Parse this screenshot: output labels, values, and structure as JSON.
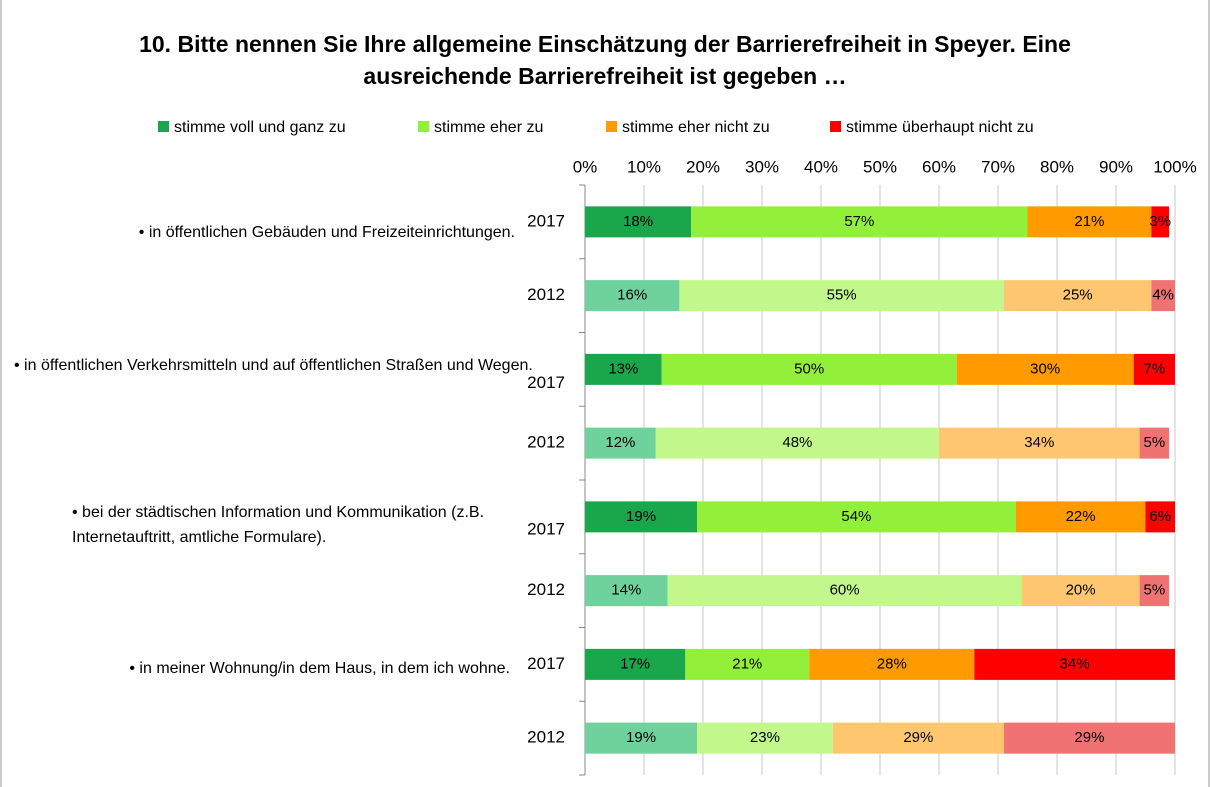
{
  "chart_data": {
    "type": "stacked_barh",
    "title": "10.  Bitte nennen Sie Ihre allgemeine Einschätzung der Barrierefreiheit in Speyer.  Eine ausreichende Barrierefreiheit ist gegeben …",
    "groups": [
      "• in öffentlichen Gebäuden und Freizeiteinrichtungen.",
      "• in öffentlichen Verkehrsmitteln und auf öffentlichen Straßen und Wegen.",
      "• bei der städtischen Information und Kommunikation (z.B. Internetauftritt, amtliche Formulare).",
      "• in meiner Wohnung/in dem Haus, in dem ich wohne."
    ],
    "categories": [
      "2017",
      "2012",
      "2017",
      "2012",
      "2017",
      "2012",
      "2017",
      "2012"
    ],
    "series": [
      {
        "name": "stimme voll und ganz zu",
        "color": "#1aa64a",
        "light_color": "#6fd29c",
        "values": [
          18,
          16,
          13,
          12,
          19,
          14,
          17,
          19
        ],
        "value_labels": [
          "18%",
          "16%",
          "13%",
          "12%",
          "19%",
          "14%",
          "17%",
          "19%"
        ]
      },
      {
        "name": "stimme eher zu",
        "color": "#93f03a",
        "light_color": "#c2f78c",
        "values": [
          57,
          55,
          50,
          48,
          54,
          60,
          21,
          23
        ],
        "value_labels": [
          "57%",
          "55%",
          "50%",
          "48%",
          "54%",
          "60%",
          "21%",
          "23%"
        ]
      },
      {
        "name": "stimme eher nicht zu",
        "color": "#ff9a00",
        "light_color": "#ffc670",
        "values": [
          21,
          25,
          30,
          34,
          22,
          20,
          28,
          29
        ],
        "value_labels": [
          "21%",
          "25%",
          "30%",
          "34%",
          "22%",
          "20%",
          "28%",
          "29%"
        ]
      },
      {
        "name": "stimme überhaupt nicht zu",
        "color": "#ff0000",
        "light_color": "#f07272",
        "values": [
          3,
          4,
          7,
          5,
          6,
          5,
          34,
          29
        ],
        "value_labels": [
          "3%",
          "4%",
          "7%",
          "5%",
          "6%",
          "5%",
          "34%",
          "29%"
        ]
      }
    ],
    "xlim": [
      0,
      100
    ],
    "xticks": [
      {
        "value": 0,
        "label": "0%"
      },
      {
        "value": 10,
        "label": "10%"
      },
      {
        "value": 20,
        "label": "20%"
      },
      {
        "value": 30,
        "label": "30%"
      },
      {
        "value": 40,
        "label": "40%"
      },
      {
        "value": 50,
        "label": "50%"
      },
      {
        "value": 60,
        "label": "60%"
      },
      {
        "value": 70,
        "label": "70%"
      },
      {
        "value": 80,
        "label": "80%"
      },
      {
        "value": 90,
        "label": "90%"
      },
      {
        "value": 100,
        "label": "100%"
      }
    ],
    "grid": true,
    "legend": "top"
  }
}
